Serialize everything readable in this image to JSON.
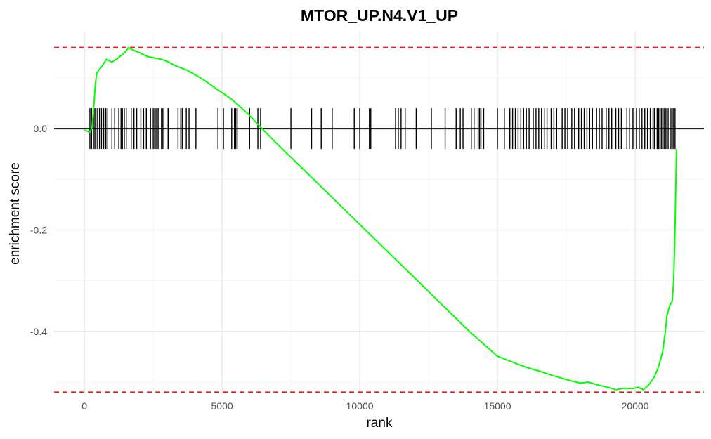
{
  "chart_data": {
    "type": "line",
    "title": "MTOR_UP.N4.V1_UP",
    "xlabel": "rank",
    "ylabel": "enrichment score",
    "xlim": [
      -1100,
      22500
    ],
    "ylim": [
      -0.525,
      0.19
    ],
    "x_ticks": [
      0,
      5000,
      10000,
      15000,
      20000
    ],
    "x_tick_labels": [
      "0",
      "5000",
      "10000",
      "15000",
      "20000"
    ],
    "y_ticks": [
      0.0,
      -0.2,
      -0.4
    ],
    "y_tick_labels": [
      "0.0",
      "-0.2",
      "-0.4"
    ],
    "grid": true,
    "legend": "none",
    "colors": {
      "curve": "#00ff00",
      "bounds": "#e41a1c",
      "zero_line": "#000000",
      "hits": "#000000",
      "grid": "#ebebeb"
    },
    "series": [
      {
        "x": [
          0,
          200,
          280,
          350,
          400,
          450,
          520,
          600,
          700,
          800,
          900,
          1000,
          1100,
          1200,
          1300,
          1400,
          1500,
          1600,
          1700,
          1850,
          2000,
          2150,
          2300,
          2500,
          2700,
          2900,
          3100,
          3300,
          3500,
          3700,
          3900,
          4100,
          4300,
          4500,
          4700,
          5000,
          5300,
          5600,
          6000,
          6400,
          7000,
          8000,
          9000,
          10000,
          11000,
          12000,
          13000,
          14000,
          15000,
          16000,
          16500,
          17000,
          17500,
          18000,
          18300,
          18600,
          19000,
          19300,
          19600,
          19900,
          20100,
          20300,
          20500,
          20700,
          20850,
          21000,
          21100,
          21150,
          21250,
          21350,
          21400,
          21450,
          21500
        ],
        "y": [
          -0.003,
          -0.007,
          0.003,
          0.05,
          0.09,
          0.11,
          0.115,
          0.12,
          0.128,
          0.137,
          0.134,
          0.131,
          0.135,
          0.138,
          0.143,
          0.147,
          0.152,
          0.16,
          0.157,
          0.153,
          0.15,
          0.146,
          0.142,
          0.14,
          0.138,
          0.135,
          0.13,
          0.124,
          0.12,
          0.116,
          0.11,
          0.104,
          0.097,
          0.09,
          0.082,
          0.071,
          0.06,
          0.046,
          0.026,
          0.003,
          -0.03,
          -0.083,
          -0.136,
          -0.189,
          -0.242,
          -0.295,
          -0.348,
          -0.401,
          -0.449,
          -0.47,
          -0.478,
          -0.487,
          -0.495,
          -0.502,
          -0.5,
          -0.505,
          -0.51,
          -0.515,
          -0.512,
          -0.513,
          -0.51,
          -0.515,
          -0.505,
          -0.49,
          -0.47,
          -0.44,
          -0.4,
          -0.37,
          -0.35,
          -0.34,
          -0.3,
          -0.2,
          -0.04
        ]
      }
    ],
    "hits": [
      200,
      260,
      330,
      380,
      420,
      480,
      550,
      620,
      700,
      780,
      830,
      1000,
      1100,
      1250,
      1330,
      1380,
      1450,
      1520,
      1700,
      1800,
      1900,
      2050,
      2150,
      2250,
      2400,
      2500,
      2550,
      2600,
      2650,
      2700,
      2800,
      2850,
      3000,
      3050,
      3400,
      3500,
      3550,
      3700,
      3800,
      4050,
      4850,
      5050,
      5350,
      5450,
      5500,
      5550,
      6000,
      6300,
      6400,
      7500,
      8250,
      8600,
      9000,
      9800,
      10000,
      10350,
      10400,
      11300,
      11400,
      11500,
      11650,
      12050,
      12600,
      13100,
      13500,
      13650,
      13750,
      14050,
      14150,
      14300,
      14350,
      14400,
      14500,
      15000,
      15250,
      15450,
      15550,
      15650,
      15750,
      15850,
      15950,
      16050,
      16150,
      16300,
      16400,
      16500,
      16600,
      16700,
      16800,
      16950,
      17050,
      17150,
      17350,
      17450,
      17550,
      17700,
      17800,
      17950,
      18050,
      18150,
      18250,
      18350,
      18450,
      18600,
      18700,
      18800,
      18950,
      19050,
      19150,
      19300,
      19400,
      19500,
      19700,
      19800,
      19900,
      19950,
      20050,
      20150,
      20250,
      20350,
      20450,
      20550,
      20650,
      20700,
      20800,
      20850,
      20900,
      20950,
      21000,
      21050,
      21100,
      21150,
      21200,
      21300,
      21350,
      21400,
      21450
    ],
    "hline_max": 0.16,
    "hline_min": -0.52,
    "hline_zero": 0.0
  }
}
